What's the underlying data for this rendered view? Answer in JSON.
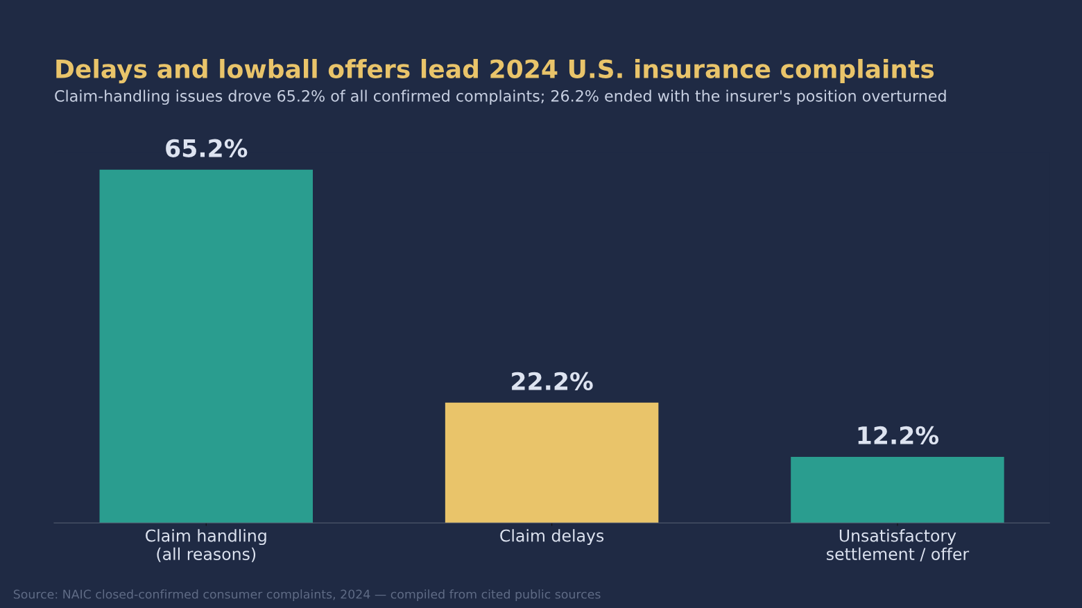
{
  "chart_data": {
    "type": "bar",
    "title": "Delays and lowball offers lead 2024 U.S. insurance complaints",
    "subtitle": "Claim-handling issues drove 65.2% of all confirmed complaints; 26.2% ended with the insurer's position overturned",
    "categories": [
      "Claim handling\n(all reasons)",
      "Claim delays",
      "Unsatisfactory\nsettlement / offer"
    ],
    "values": [
      65.2,
      22.2,
      12.2
    ],
    "colors": [
      "#2a9d8f",
      "#e9c46a",
      "#2a9d8f"
    ],
    "value_labels": [
      "65.2%",
      "22.2%",
      "12.2%"
    ],
    "grid": false,
    "legend": false,
    "annotations": [
      "Source: NAIC closed-confirmed consumer complaints, 2024 — compiled from cited public sources"
    ]
  }
}
